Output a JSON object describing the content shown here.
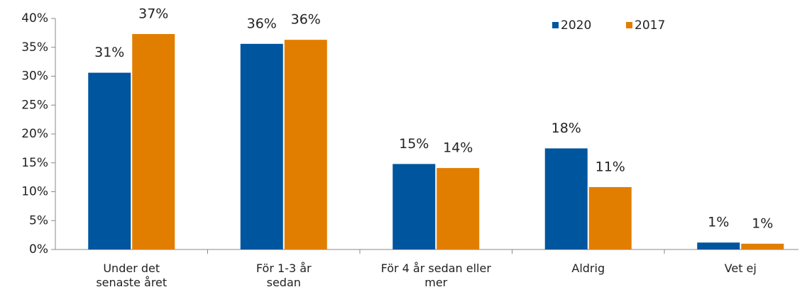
{
  "chart_data": {
    "type": "bar",
    "categories": [
      "Under det senaste året",
      "För 1-3 år sedan",
      "För 4 år sedan eller mer",
      "Aldrig",
      "Vet ej"
    ],
    "series": [
      {
        "name": "2020",
        "color": "#00559f",
        "values": [
          30.6,
          35.6,
          14.8,
          17.5,
          1.2
        ],
        "value_labels": [
          "31%",
          "36%",
          "15%",
          "18%",
          "1%"
        ]
      },
      {
        "name": "2017",
        "color": "#e17e00",
        "values": [
          37.3,
          36.3,
          14.1,
          10.8,
          1.0
        ],
        "value_labels": [
          "37%",
          "36%",
          "14%",
          "11%",
          "1%"
        ]
      }
    ],
    "ylim": [
      0,
      40
    ],
    "yticks": [
      {
        "value": 0,
        "label": "0%"
      },
      {
        "value": 5,
        "label": "5%"
      },
      {
        "value": 10,
        "label": "10%"
      },
      {
        "value": 15,
        "label": "15%"
      },
      {
        "value": 20,
        "label": "20%"
      },
      {
        "value": 25,
        "label": "25%"
      },
      {
        "value": 30,
        "label": "30%"
      },
      {
        "value": 35,
        "label": "35%"
      },
      {
        "value": 40,
        "label": "40%"
      }
    ],
    "grid": false,
    "legend": "top-right"
  }
}
